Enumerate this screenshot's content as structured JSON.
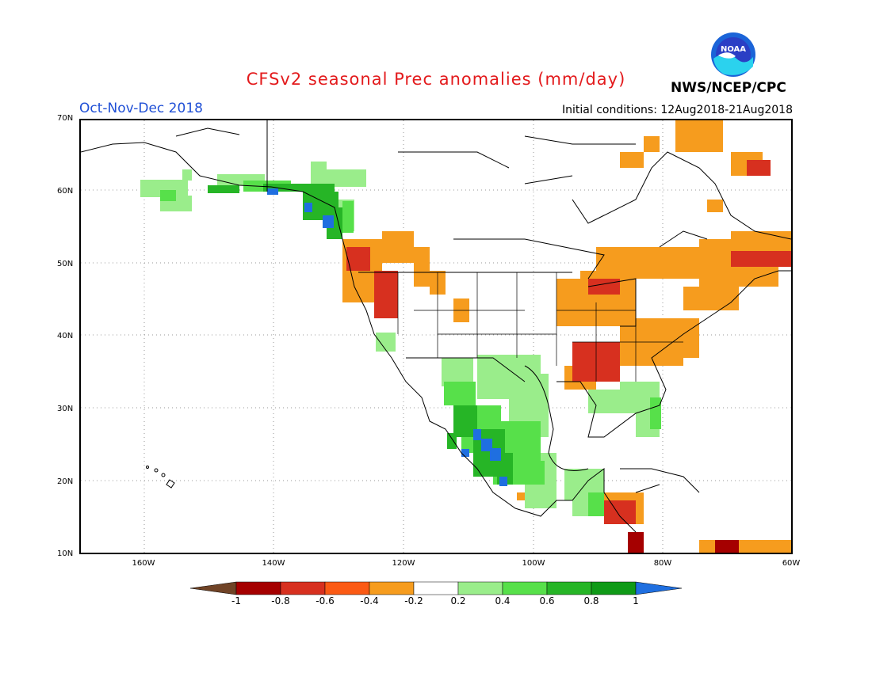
{
  "header": {
    "title": "CFSv2 seasonal Prec anomalies (mm/day)",
    "period": "Oct-Nov-Dec 2018",
    "initial_conditions": "Initial conditions: 12Aug2018-21Aug2018",
    "agency": "NWS/NCEP/CPC",
    "logo_text": "NOAA"
  },
  "axes": {
    "lat_labels": [
      "70N",
      "60N",
      "50N",
      "40N",
      "30N",
      "20N",
      "10N"
    ],
    "lon_labels": [
      "160W",
      "140W",
      "120W",
      "100W",
      "80W",
      "60W"
    ]
  },
  "colorbar": {
    "labels": [
      "-1",
      "-0.8",
      "-0.6",
      "-0.4",
      "-0.2",
      "0.2",
      "0.4",
      "0.6",
      "0.8",
      "1"
    ],
    "colors": [
      "#704326",
      "#a50000",
      "#d7301f",
      "#fb5a14",
      "#f69c1e",
      "#ffffff",
      "#9aed8b",
      "#57e04a",
      "#26b526",
      "#0f9a17",
      "#1f6fe0"
    ]
  },
  "colors": {
    "dry_strong": "#d7301f",
    "dry_moderate": "#f69c1e",
    "dry_extreme": "#a50000",
    "wet_light": "#9aed8b",
    "wet_moderate": "#57e04a",
    "wet_strong": "#26b526",
    "wet_extreme": "#1f6fe0"
  }
}
